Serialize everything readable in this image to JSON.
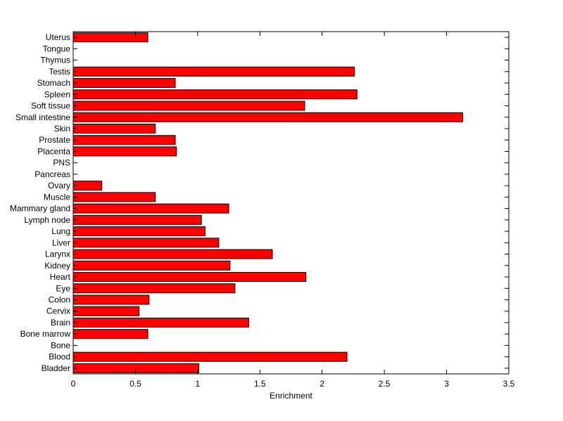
{
  "chart_data": {
    "type": "bar",
    "orientation": "horizontal",
    "title": "",
    "xlabel": "Enrichment",
    "ylabel": "",
    "xlim": [
      0,
      3.5
    ],
    "xticks": [
      0,
      0.5,
      1,
      1.5,
      2,
      2.5,
      3,
      3.5
    ],
    "xtick_labels": [
      "0",
      "0.5",
      "1",
      "1.5",
      "2",
      "2.5",
      "3",
      "3.5"
    ],
    "grid": false,
    "bar_color": "#ff0000",
    "categories": [
      "Bladder",
      "Blood",
      "Bone",
      "Bone marrow",
      "Brain",
      "Cervix",
      "Colon",
      "Eye",
      "Heart",
      "Kidney",
      "Larynx",
      "Liver",
      "Lung",
      "Lymph node",
      "Mammary gland",
      "Muscle",
      "Ovary",
      "Pancreas",
      "PNS",
      "Placenta",
      "Prostate",
      "Skin",
      "Small intestine",
      "Soft tissue",
      "Spleen",
      "Stomach",
      "Testis",
      "Thymus",
      "Tongue",
      "Uterus"
    ],
    "values": [
      1.01,
      2.2,
      0,
      0.6,
      1.41,
      0.53,
      0.61,
      1.3,
      1.87,
      1.26,
      1.6,
      1.17,
      1.06,
      1.03,
      1.25,
      0.66,
      0.23,
      0,
      0,
      0.83,
      0.82,
      0.66,
      3.13,
      1.86,
      2.28,
      0.82,
      2.26,
      0,
      0,
      0.6
    ]
  }
}
